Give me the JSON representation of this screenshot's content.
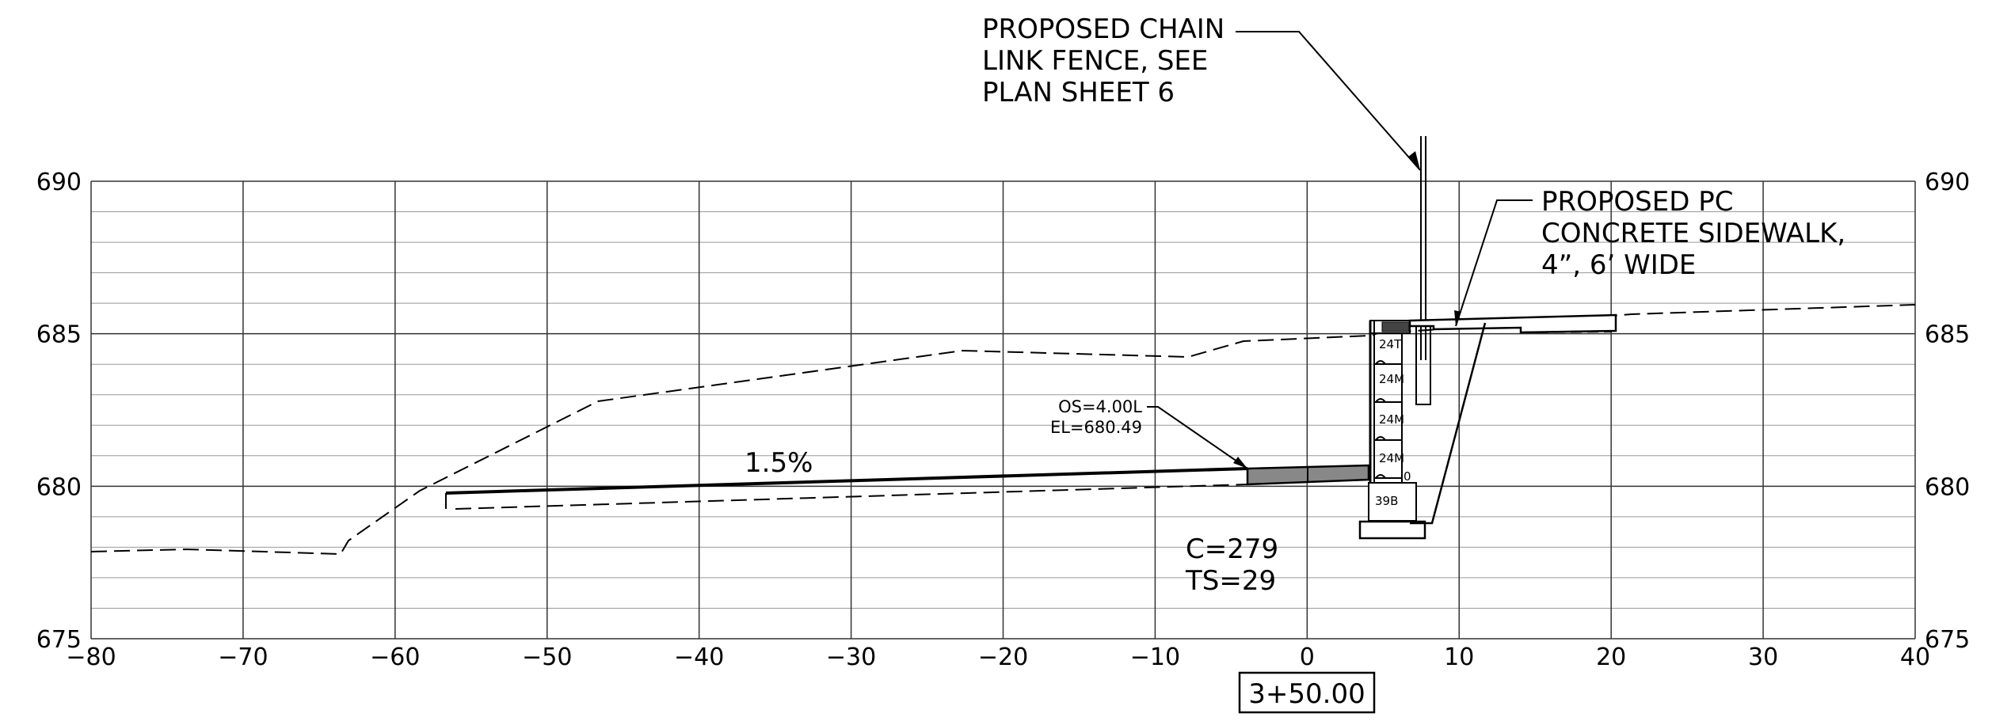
{
  "callouts": {
    "fence": [
      "PROPOSED CHAIN",
      "LINK FENCE, SEE",
      "PLAN SHEET 6"
    ],
    "sidewalk": [
      "PROPOSED PC",
      "CONCRETE SIDEWALK,",
      "4”, 6’ WIDE"
    ],
    "offset": [
      "OS=4.00L",
      "EL=680.49"
    ]
  },
  "slope_label": "1.5%",
  "quantities": [
    "C=279",
    "TS=29"
  ],
  "station": "3+50.00",
  "wall_block_labels": [
    "24T",
    "24M",
    "24M",
    "24M",
    "0",
    "39B"
  ],
  "axes": {
    "x_range": [
      -80,
      40
    ],
    "y_range": [
      675,
      690
    ],
    "x_ticks": [
      -80,
      -70,
      -60,
      -50,
      -40,
      -30,
      -20,
      -10,
      0,
      10,
      20,
      30,
      40
    ],
    "y_ticks": [
      675,
      680,
      685,
      690
    ]
  }
}
